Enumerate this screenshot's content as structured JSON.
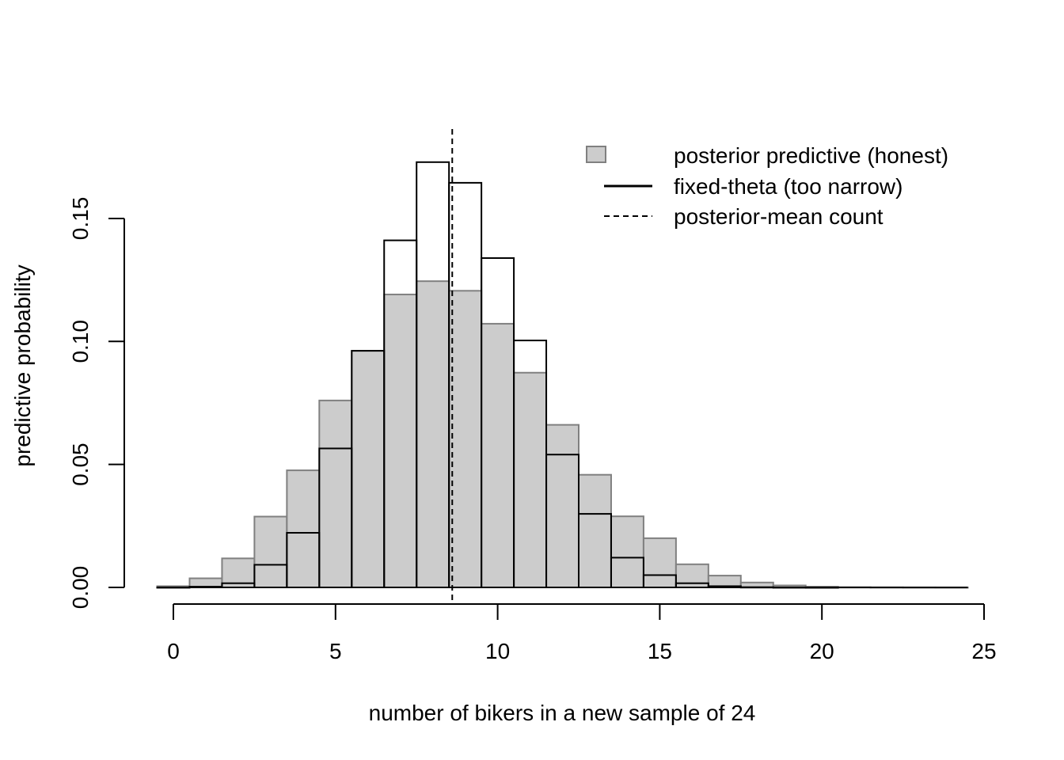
{
  "chart_data": {
    "type": "bar",
    "title": "",
    "xlabel": "number of bikers in a new sample of 24",
    "ylabel": "predictive probability",
    "x": [
      0,
      1,
      2,
      3,
      4,
      5,
      6,
      7,
      8,
      9,
      10,
      11,
      12,
      13,
      14,
      15,
      16,
      17,
      18,
      19,
      20,
      21,
      22,
      23,
      24
    ],
    "xlim": [
      -0.5,
      24.5
    ],
    "ylim": [
      0,
      0.18
    ],
    "x_ticks": [
      "0",
      "5",
      "10",
      "15",
      "20",
      "25"
    ],
    "y_ticks": [
      "0.00",
      "0.05",
      "0.10",
      "0.15"
    ],
    "series": [
      {
        "name": "posterior predictive (honest)",
        "style": "filled",
        "fill": "#cccccc",
        "stroke": "#808080",
        "values": [
          0.0005,
          0.0037,
          0.0118,
          0.0288,
          0.0476,
          0.076,
          0.0962,
          0.1191,
          0.1245,
          0.1206,
          0.1072,
          0.0873,
          0.0661,
          0.0458,
          0.0289,
          0.02,
          0.0094,
          0.0048,
          0.002,
          0.0008,
          0.0003,
          0.0001,
          5e-05,
          2e-05,
          1e-05
        ]
      },
      {
        "name": "fixed-theta (too narrow)",
        "style": "outline",
        "stroke": "#000000",
        "values": [
          3e-05,
          0.0003,
          0.0017,
          0.0092,
          0.0222,
          0.0565,
          0.0962,
          0.1411,
          0.1729,
          0.1645,
          0.1339,
          0.1004,
          0.054,
          0.0299,
          0.0121,
          0.005,
          0.0017,
          0.0005,
          0.0001,
          3e-05,
          1e-05,
          0,
          0,
          0,
          0
        ]
      }
    ],
    "reference_line": {
      "name": "posterior-mean count",
      "x": 8.6,
      "style": "dashed"
    },
    "legend_position": "top-right",
    "grid": false
  }
}
